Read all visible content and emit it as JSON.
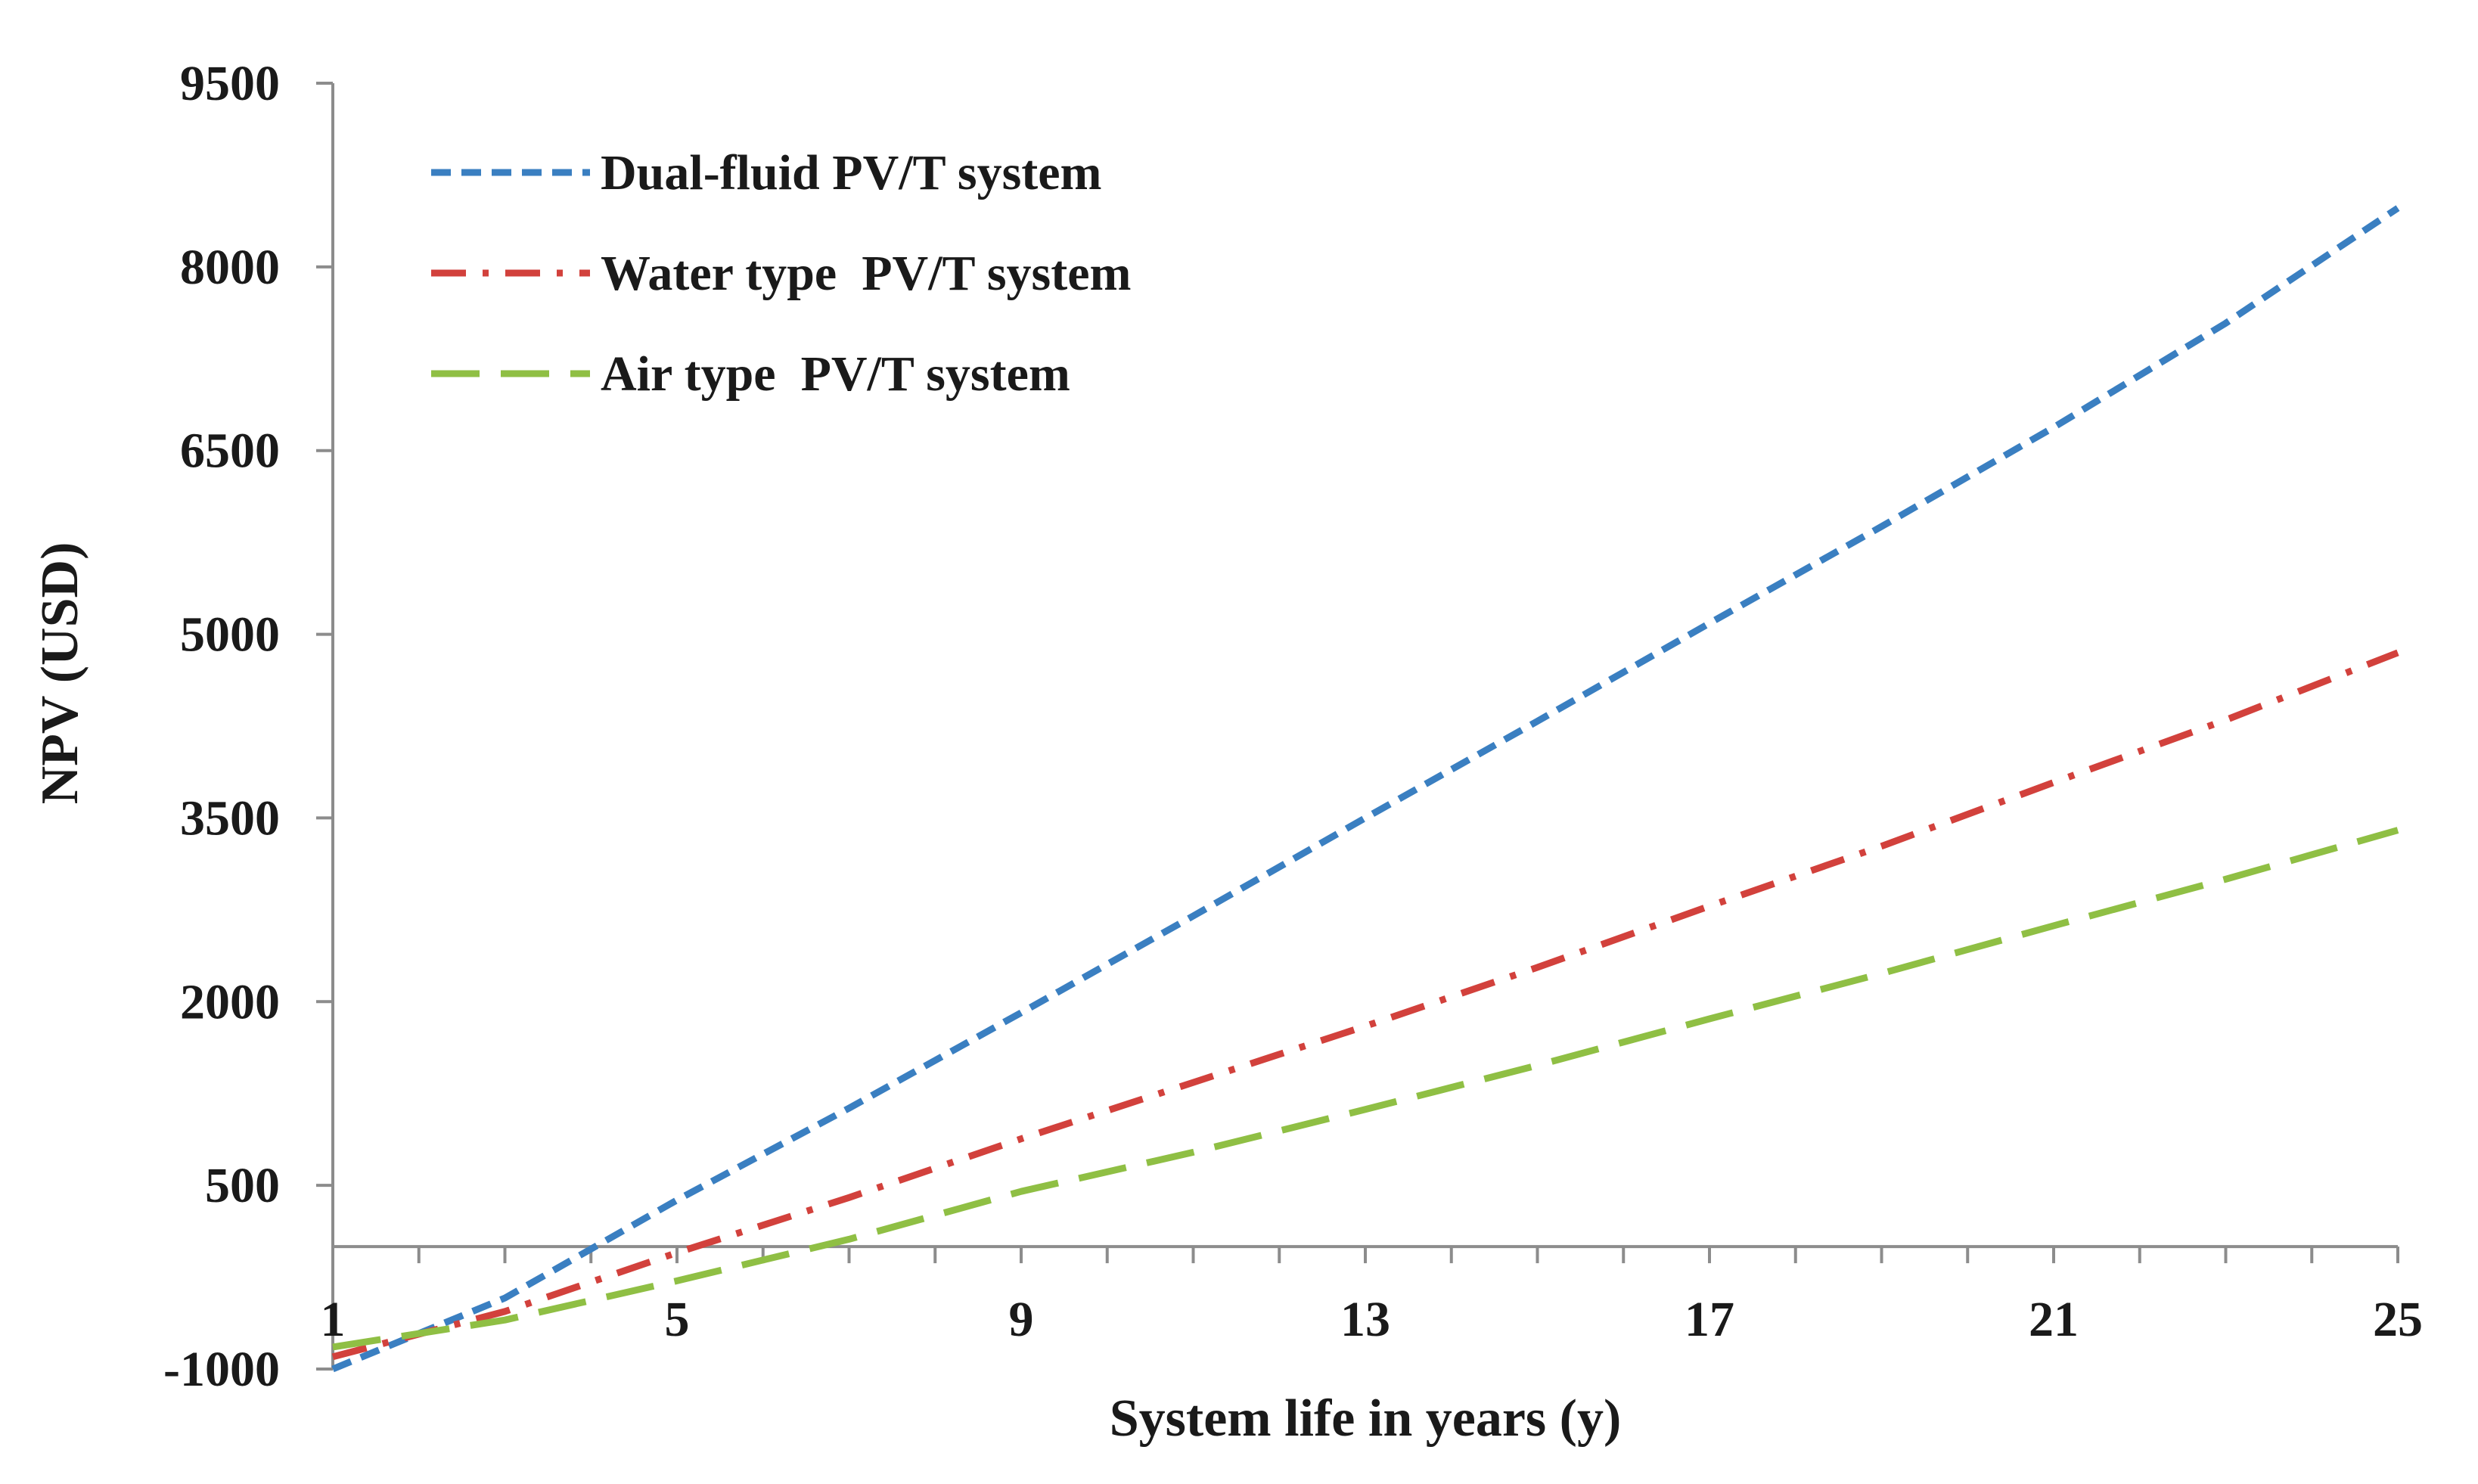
{
  "chart_data": {
    "type": "line",
    "title": "",
    "xlabel": "System life in years (y)",
    "ylabel": "NPV (USD)",
    "xlim": [
      1,
      25
    ],
    "ylim": [
      -1000,
      9500
    ],
    "x_ticks": [
      1,
      5,
      9,
      13,
      17,
      21,
      25
    ],
    "y_ticks": [
      -1000,
      500,
      2000,
      3500,
      5000,
      6500,
      8000,
      9500
    ],
    "x_minor_step": 1,
    "grid": false,
    "legend_position": "top-left",
    "x": [
      1,
      3,
      5,
      7,
      9,
      11,
      13,
      15,
      17,
      19,
      21,
      23,
      25
    ],
    "series": [
      {
        "name": "Dual-fluid PV/T system",
        "color": "#3a7fc1",
        "dash": "dashed",
        "values": [
          -1000,
          -420,
          380,
          1130,
          1910,
          2700,
          3500,
          4290,
          5090,
          5880,
          6690,
          7540,
          8480
        ]
      },
      {
        "name": "Water type  PV/T system",
        "color": "#d2413c",
        "dash": "dash-dot",
        "values": [
          -900,
          -530,
          -50,
          400,
          880,
          1340,
          1800,
          2280,
          2780,
          3270,
          3790,
          4300,
          4850
        ]
      },
      {
        "name": "Air type  PV/T system",
        "color": "#8fbf44",
        "dash": "long-dash",
        "values": [
          -820,
          -600,
          -280,
          60,
          450,
          770,
          1120,
          1480,
          1860,
          2230,
          2620,
          3000,
          3400
        ]
      }
    ]
  }
}
